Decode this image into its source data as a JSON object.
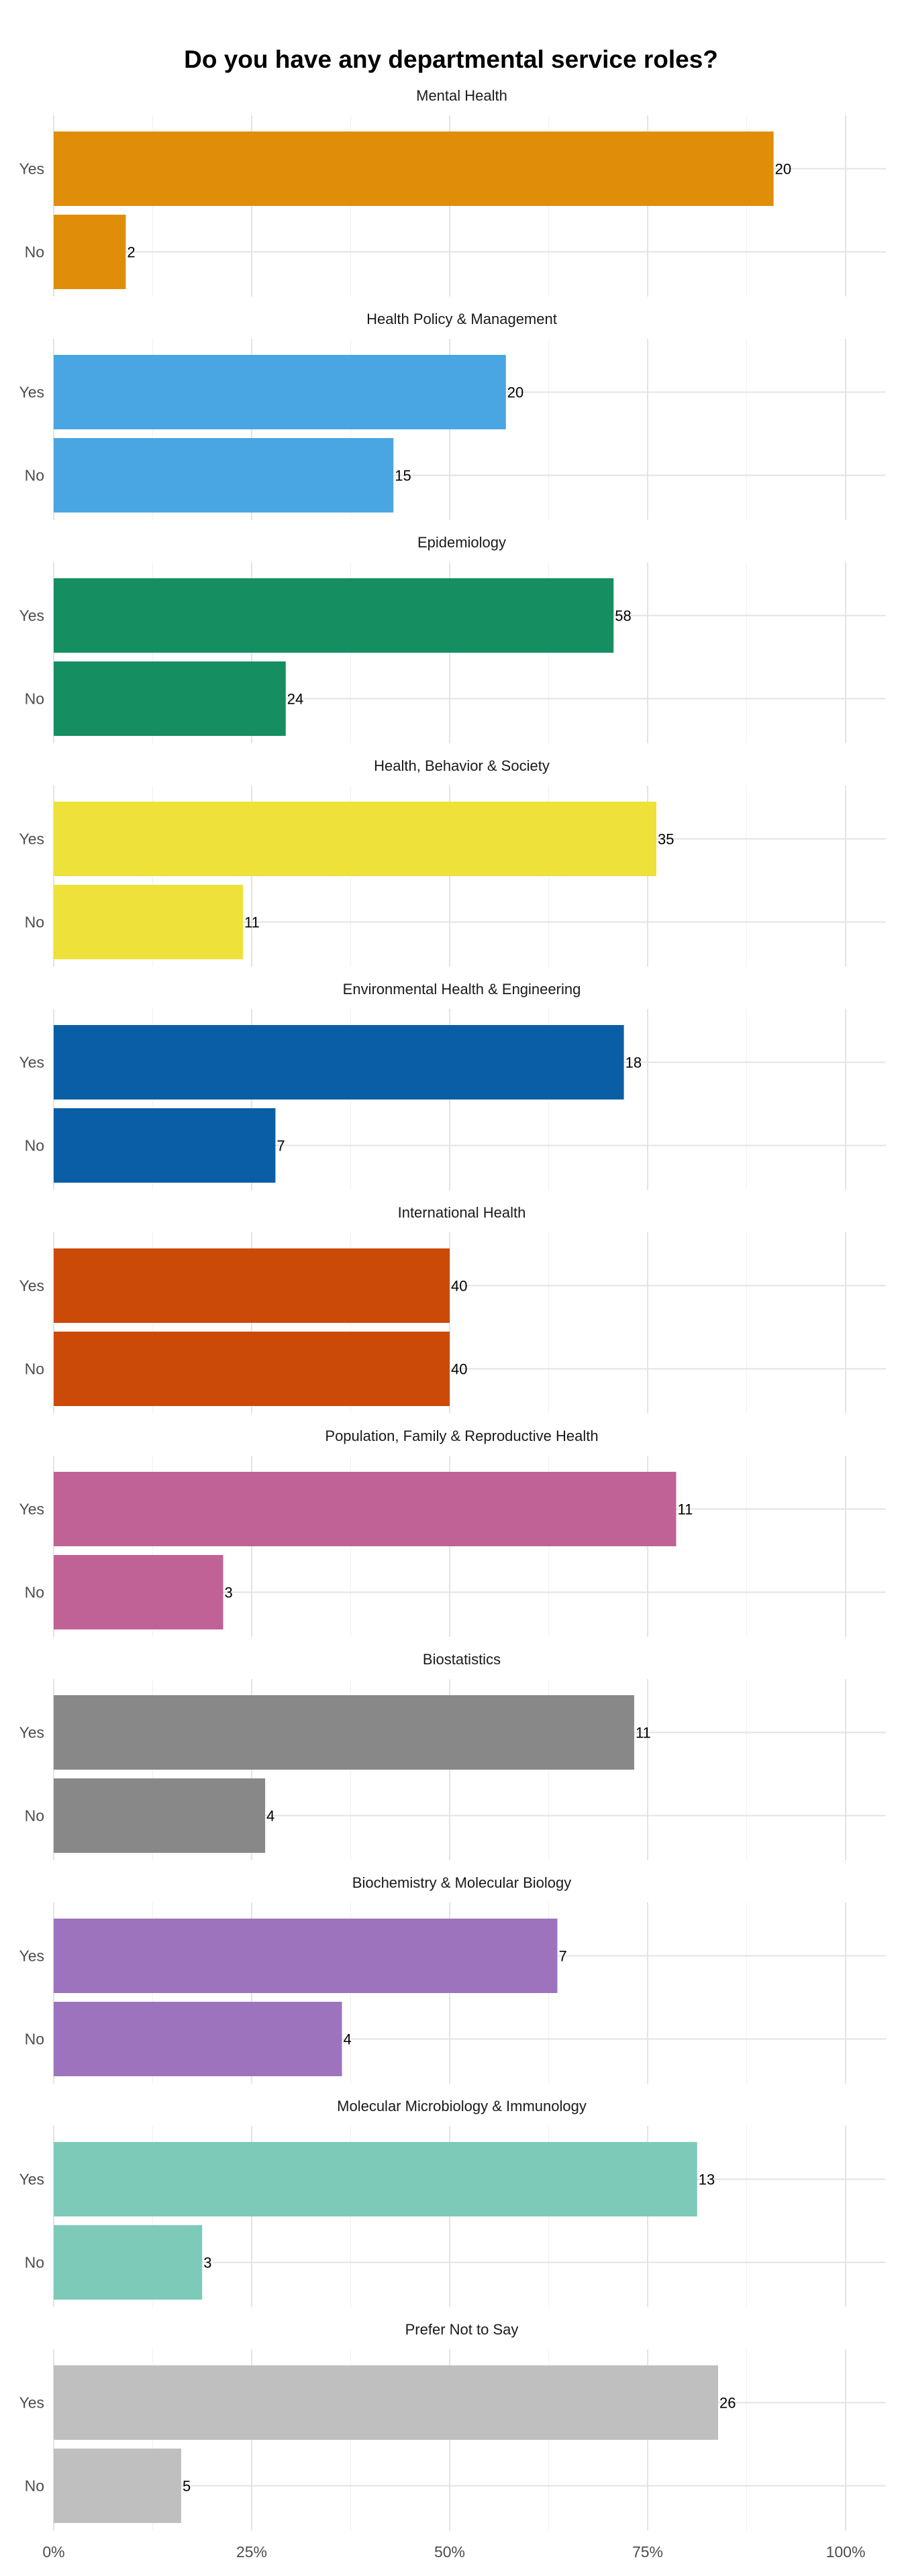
{
  "chart_data": {
    "type": "bar",
    "orientation": "horizontal",
    "title": "Do you have any departmental service roles?",
    "xlabel": "",
    "ylabel": "",
    "xlim": [
      0,
      1.05
    ],
    "x_ticks": [
      0,
      0.25,
      0.5,
      0.75,
      1.0
    ],
    "x_tick_labels": [
      "0%",
      "25%",
      "50%",
      "75%",
      "100%"
    ],
    "categories": [
      "Yes",
      "No"
    ],
    "grid": true,
    "legend": "none",
    "facets": [
      {
        "name": "Mental Health",
        "color": "#E08E09",
        "bars": [
          {
            "category": "Yes",
            "share": 0.909,
            "label": "20"
          },
          {
            "category": "No",
            "share": 0.091,
            "label": "2"
          }
        ]
      },
      {
        "name": "Health Policy & Management",
        "color": "#4AA5E3",
        "bars": [
          {
            "category": "Yes",
            "share": 0.571,
            "label": "20"
          },
          {
            "category": "No",
            "share": 0.429,
            "label": "15"
          }
        ]
      },
      {
        "name": "Epidemiology",
        "color": "#158F62",
        "bars": [
          {
            "category": "Yes",
            "share": 0.707,
            "label": "58"
          },
          {
            "category": "No",
            "share": 0.293,
            "label": "24"
          }
        ]
      },
      {
        "name": "Health, Behavior & Society",
        "color": "#EDE13A",
        "bars": [
          {
            "category": "Yes",
            "share": 0.761,
            "label": "35"
          },
          {
            "category": "No",
            "share": 0.239,
            "label": "11"
          }
        ]
      },
      {
        "name": "Environmental Health & Engineering",
        "color": "#0A5EA5",
        "bars": [
          {
            "category": "Yes",
            "share": 0.72,
            "label": "18"
          },
          {
            "category": "No",
            "share": 0.28,
            "label": "7"
          }
        ]
      },
      {
        "name": "International Health",
        "color": "#CC4A08",
        "bars": [
          {
            "category": "Yes",
            "share": 0.5,
            "label": "40"
          },
          {
            "category": "No",
            "share": 0.5,
            "label": "40"
          }
        ]
      },
      {
        "name": "Population, Family & Reproductive Health",
        "color": "#C16297",
        "bars": [
          {
            "category": "Yes",
            "share": 0.786,
            "label": "11"
          },
          {
            "category": "No",
            "share": 0.214,
            "label": "3"
          }
        ]
      },
      {
        "name": "Biostatistics",
        "color": "#888888",
        "bars": [
          {
            "category": "Yes",
            "share": 0.733,
            "label": "11"
          },
          {
            "category": "No",
            "share": 0.267,
            "label": "4"
          }
        ]
      },
      {
        "name": "Biochemistry & Molecular Biology",
        "color": "#9D73BD",
        "bars": [
          {
            "category": "Yes",
            "share": 0.636,
            "label": "7"
          },
          {
            "category": "No",
            "share": 0.364,
            "label": "4"
          }
        ]
      },
      {
        "name": "Molecular Microbiology & Immunology",
        "color": "#7ECAB9",
        "bars": [
          {
            "category": "Yes",
            "share": 0.8125,
            "label": "13"
          },
          {
            "category": "No",
            "share": 0.1875,
            "label": "3"
          }
        ]
      },
      {
        "name": "Prefer Not to Say",
        "color": "#BFBFBF",
        "bars": [
          {
            "category": "Yes",
            "share": 0.839,
            "label": "26"
          },
          {
            "category": "No",
            "share": 0.161,
            "label": "5"
          }
        ]
      }
    ]
  }
}
